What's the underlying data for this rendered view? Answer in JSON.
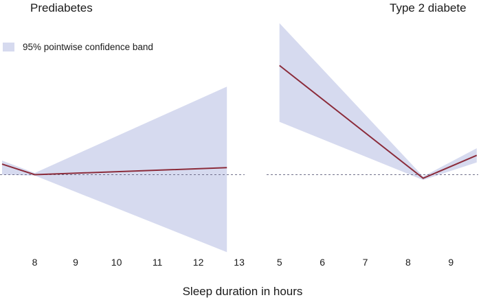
{
  "panel_titles": [
    "Prediabetes",
    "Type 2 diabete"
  ],
  "legend_label": "95% pointwise confidence band",
  "xlabel": "Sleep duration in hours",
  "colors": {
    "band": "#d6daef",
    "line": "#8b2b3a",
    "reference": "#6e6e8a",
    "text": "#1a1a1a"
  },
  "chart_data": [
    {
      "type": "line",
      "title": "Prediabetes",
      "xlabel": "Sleep duration in hours",
      "xlim": [
        7.15,
        13.2
      ],
      "ylim": [
        -0.9,
        1.75
      ],
      "xticks": [
        8,
        9,
        10,
        11,
        12,
        13
      ],
      "xtick_labels": [
        "8",
        "9",
        "10",
        "11",
        "12",
        "13"
      ],
      "reference_line": 0,
      "series": [
        {
          "role": "estimate",
          "x": [
            7.2,
            8.0,
            12.7
          ],
          "values": [
            0.12,
            0.0,
            0.08
          ]
        },
        {
          "role": "ci_lower",
          "x": [
            7.2,
            8.0,
            12.7
          ],
          "values": [
            0.0,
            -0.01,
            -0.88
          ]
        },
        {
          "role": "ci_upper",
          "x": [
            7.2,
            8.0,
            12.7
          ],
          "values": [
            0.16,
            0.02,
            1.0
          ]
        }
      ]
    },
    {
      "type": "line",
      "title": "Type 2 diabete",
      "xlabel": "Sleep duration in hours",
      "xlim": [
        4.7,
        9.7
      ],
      "ylim": [
        -0.9,
        1.75
      ],
      "xticks": [
        5,
        6,
        7,
        8,
        9
      ],
      "xtick_labels": [
        "5",
        "6",
        "7",
        "8",
        "9"
      ],
      "reference_line": 0,
      "series": [
        {
          "role": "estimate",
          "x": [
            5.0,
            8.35,
            9.6
          ],
          "values": [
            1.24,
            -0.04,
            0.22
          ]
        },
        {
          "role": "ci_lower",
          "x": [
            5.0,
            8.35,
            9.6
          ],
          "values": [
            0.6,
            -0.06,
            0.14
          ]
        },
        {
          "role": "ci_upper",
          "x": [
            5.0,
            8.35,
            9.6
          ],
          "values": [
            1.72,
            -0.02,
            0.3
          ]
        }
      ]
    }
  ]
}
